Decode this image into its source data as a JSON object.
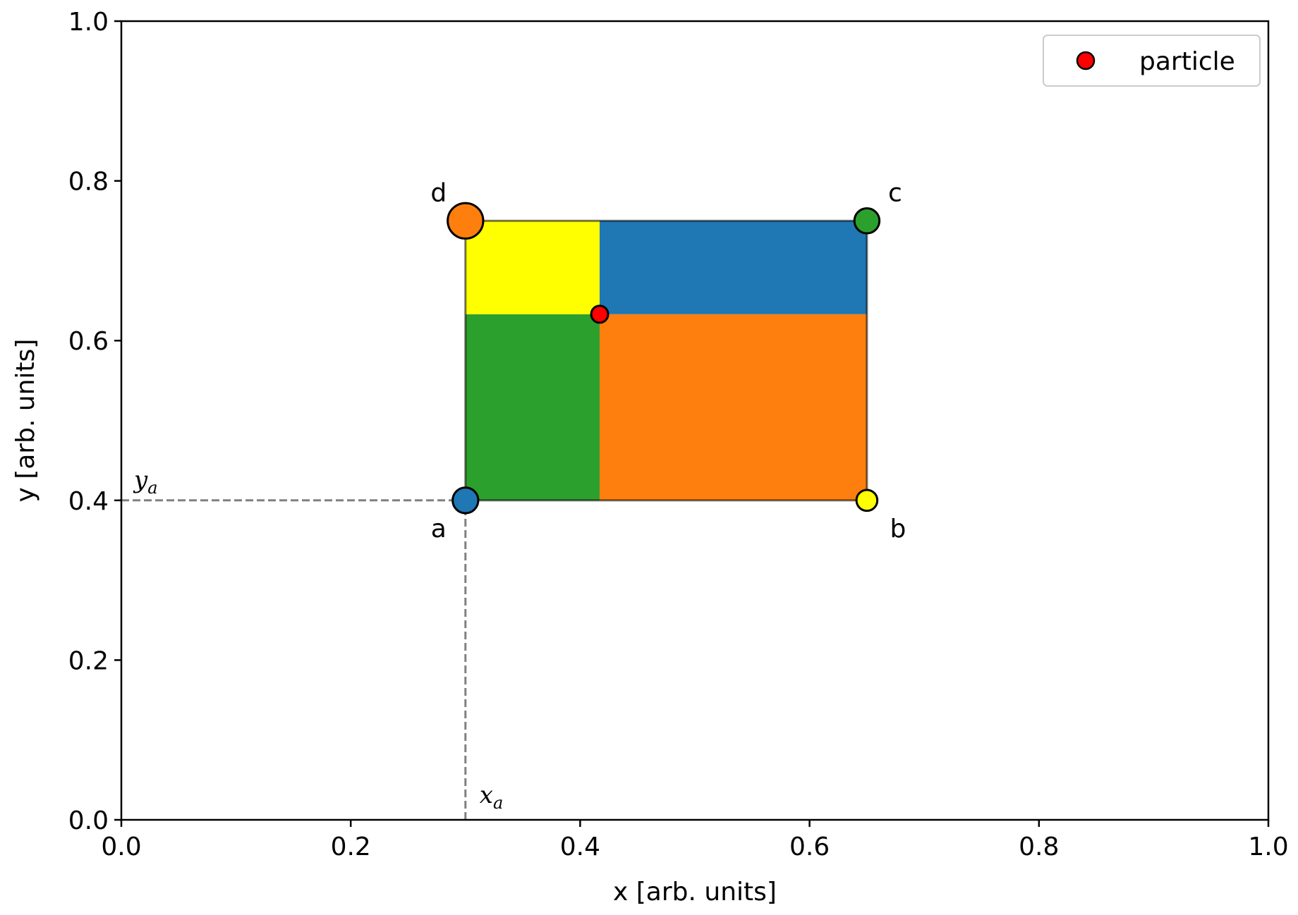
{
  "chart_data": {
    "type": "scatter",
    "title": "",
    "xlabel": "x [arb. units]",
    "ylabel": "y [arb. units]",
    "xlim": [
      0.0,
      1.0
    ],
    "ylim": [
      0.0,
      1.0
    ],
    "xticks": [
      0.0,
      0.2,
      0.4,
      0.6,
      0.8,
      1.0
    ],
    "xtick_labels": [
      "0.0",
      "0.2",
      "0.4",
      "0.6",
      "0.8",
      "1.0"
    ],
    "yticks": [
      0.0,
      0.2,
      0.4,
      0.6,
      0.8,
      1.0
    ],
    "ytick_labels": [
      "0.0",
      "0.2",
      "0.4",
      "0.6",
      "0.8",
      "1.0"
    ],
    "grid": false,
    "legend": {
      "placement": "top-right",
      "entries": [
        {
          "label": "particle",
          "color": "#ff0000"
        }
      ]
    },
    "particle": {
      "name": "particle",
      "x": 0.417,
      "y": 0.633,
      "color": "#ff0000"
    },
    "corners": [
      {
        "label": "a",
        "x": 0.3,
        "y": 0.4,
        "color": "#1f77b4",
        "weight": 0.44
      },
      {
        "label": "b",
        "x": 0.65,
        "y": 0.4,
        "color": "#ffff00",
        "weight": 0.2
      },
      {
        "label": "c",
        "x": 0.65,
        "y": 0.75,
        "color": "#2ca02c",
        "weight": 0.41
      },
      {
        "label": "d",
        "x": 0.3,
        "y": 0.75,
        "color": "#ff7f0e",
        "weight": 0.94
      }
    ],
    "areas": [
      {
        "name": "area-yellow",
        "x": [
          0.3,
          0.417
        ],
        "y": [
          0.633,
          0.75
        ],
        "color": "#ffff00"
      },
      {
        "name": "area-blue",
        "x": [
          0.417,
          0.65
        ],
        "y": [
          0.633,
          0.75
        ],
        "color": "#1f77b4"
      },
      {
        "name": "area-green",
        "x": [
          0.3,
          0.417
        ],
        "y": [
          0.4,
          0.633
        ],
        "color": "#2ca02c"
      },
      {
        "name": "area-orange",
        "x": [
          0.417,
          0.65
        ],
        "y": [
          0.4,
          0.633
        ],
        "color": "#ff7f0e"
      }
    ],
    "guides": {
      "x_label": "x",
      "x_subscript": "a",
      "y_label": "y",
      "y_subscript": "a",
      "x_value": 0.3,
      "y_value": 0.4,
      "color": "#808080"
    }
  }
}
